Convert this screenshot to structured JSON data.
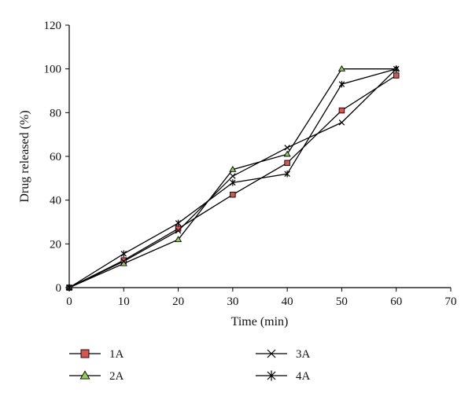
{
  "chart_data": {
    "type": "line",
    "title": "",
    "xlabel": "Time (min)",
    "ylabel": "Drug released (%)",
    "xlim": [
      0,
      70
    ],
    "ylim": [
      0,
      120
    ],
    "xticks": [
      0,
      10,
      20,
      30,
      40,
      50,
      60,
      70
    ],
    "yticks": [
      0,
      20,
      40,
      60,
      80,
      100,
      120
    ],
    "grid": false,
    "legend_position": "bottom",
    "x": [
      0,
      10,
      20,
      30,
      40,
      50,
      60
    ],
    "series": [
      {
        "name": "1A",
        "marker": "square",
        "color": "#d9534f",
        "values": [
          0,
          12.5,
          27,
          42.5,
          57,
          81,
          97
        ]
      },
      {
        "name": "2A",
        "marker": "triangle",
        "color": "#8fd14f",
        "values": [
          0,
          11,
          22,
          54,
          61,
          100,
          100
        ]
      },
      {
        "name": "3A",
        "marker": "x",
        "color": "#000000",
        "values": [
          0,
          12,
          26,
          51,
          64,
          75.5,
          100
        ]
      },
      {
        "name": "4A",
        "marker": "star",
        "color": "#000000",
        "values": [
          0,
          15.5,
          29.5,
          48,
          52,
          93,
          100
        ]
      }
    ]
  }
}
